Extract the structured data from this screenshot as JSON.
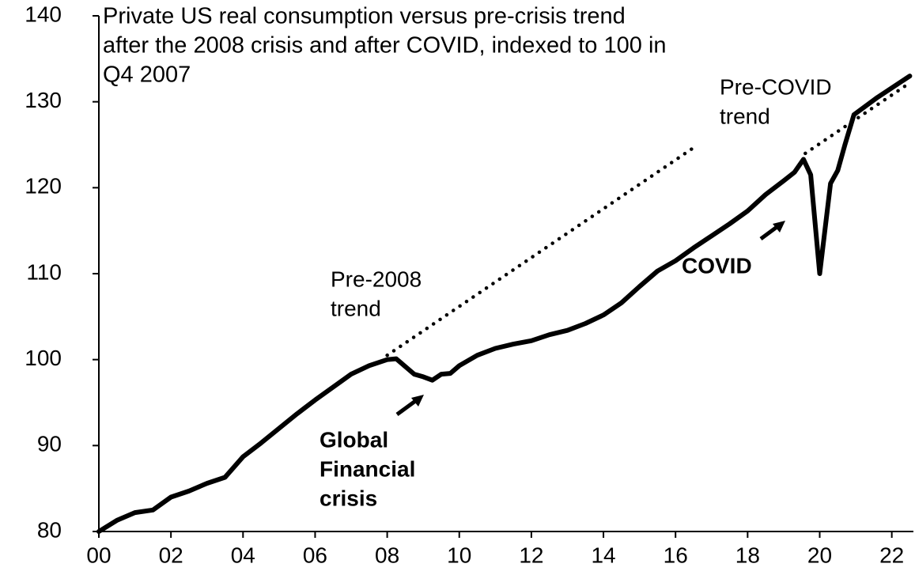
{
  "chart_data": {
    "type": "line",
    "title": [
      "Private US real consumption versus pre-crisis trend",
      "after the 2008  crisis and after COVID, indexed to 100 in",
      "Q4 2007"
    ],
    "xlim": [
      0,
      22.6
    ],
    "xticks": [
      {
        "value": 0,
        "label": "00"
      },
      {
        "value": 2,
        "label": "02"
      },
      {
        "value": 4,
        "label": "04"
      },
      {
        "value": 6,
        "label": "06"
      },
      {
        "value": 8,
        "label": "08"
      },
      {
        "value": 10,
        "label": "10"
      },
      {
        "value": 12,
        "label": "12"
      },
      {
        "value": 14,
        "label": "14"
      },
      {
        "value": 16,
        "label": "16"
      },
      {
        "value": 18,
        "label": "18"
      },
      {
        "value": 20,
        "label": "20"
      },
      {
        "value": 22,
        "label": "22"
      }
    ],
    "ylim": [
      80,
      140
    ],
    "yticks": [
      80,
      90,
      100,
      110,
      120,
      130,
      140
    ],
    "series": [
      {
        "name": "Private US real consumption",
        "color": "#000000",
        "style": "solid",
        "x": [
          0,
          0.5,
          1,
          1.5,
          2,
          2.5,
          3,
          3.5,
          4,
          4.5,
          5,
          5.5,
          6,
          6.5,
          7,
          7.5,
          8,
          8.25,
          8.5,
          8.75,
          9,
          9.25,
          9.5,
          9.75,
          10,
          10.5,
          11,
          11.5,
          12,
          12.5,
          13,
          13.5,
          14,
          14.5,
          15,
          15.5,
          16,
          16.5,
          17,
          17.5,
          18,
          18.5,
          19,
          19.3,
          19.55,
          19.75,
          20.0,
          20.3,
          20.5,
          20.7,
          20.95,
          21.6,
          22.5
        ],
        "values": [
          80,
          81.3,
          82.2,
          82.5,
          84,
          84.7,
          85.6,
          86.3,
          88.7,
          90.3,
          92,
          93.7,
          95.3,
          96.8,
          98.3,
          99.3,
          100,
          100.1,
          99.2,
          98.3,
          98,
          97.6,
          98.3,
          98.4,
          99.3,
          100.5,
          101.3,
          101.8,
          102.2,
          102.9,
          103.4,
          104.2,
          105.2,
          106.6,
          108.5,
          110.3,
          111.5,
          113,
          114.4,
          115.8,
          117.3,
          119.2,
          120.8,
          121.8,
          123.3,
          121.5,
          110,
          120.5,
          122,
          125,
          128.5,
          130.5,
          133
        ]
      },
      {
        "name": "Pre-2008 trend",
        "color": "#000000",
        "style": "dotted",
        "x": [
          8.0,
          16.55
        ],
        "values": [
          100.5,
          124.8
        ]
      },
      {
        "name": "Pre-COVID trend",
        "color": "#000000",
        "style": "dotted",
        "x": [
          19.6,
          22.5
        ],
        "values": [
          124,
          132.2
        ]
      }
    ],
    "annotations": [
      {
        "text": [
          "Pre-2008",
          "trend"
        ],
        "bold": false
      },
      {
        "text": [
          "Pre-COVID",
          "trend"
        ],
        "bold": false
      },
      {
        "text": [
          "COVID"
        ],
        "bold": true
      },
      {
        "text": [
          "Global",
          "Financial",
          "crisis"
        ],
        "bold": true
      }
    ]
  }
}
